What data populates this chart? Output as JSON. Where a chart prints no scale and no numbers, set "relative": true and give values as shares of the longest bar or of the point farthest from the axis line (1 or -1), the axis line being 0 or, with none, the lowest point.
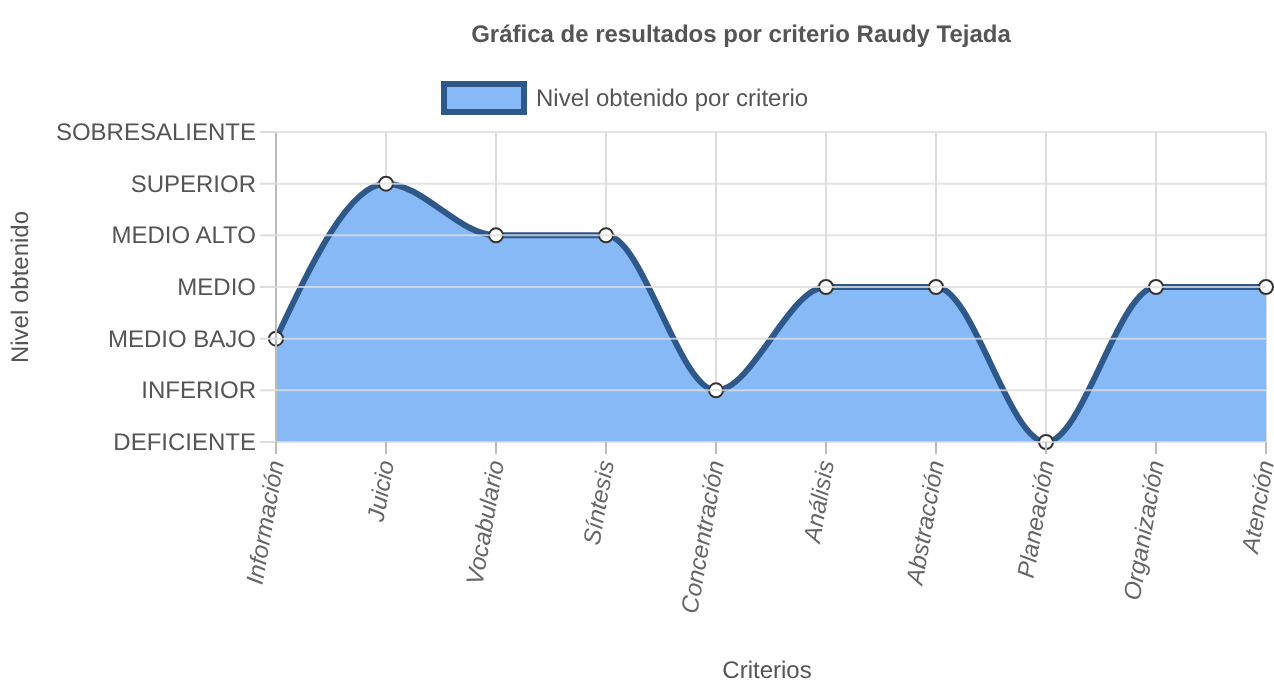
{
  "chart_data": {
    "type": "area",
    "title": "Gráfica de resultados por criterio Raudy Tejada",
    "xlabel": "Criterios",
    "annotations": [
      "Nivel obtenido"
    ],
    "categories": [
      "Información",
      "Juicio",
      "Vocabulario",
      "Síntesis",
      "Concentración",
      "Análisis",
      "Abstracción",
      "Planeación",
      "Organización",
      "Atención"
    ],
    "series": [
      {
        "name": "Nivel obtenido por criterio",
        "color": "#87b9f7",
        "values": [
          0.4,
          1,
          0.8,
          0.8,
          0.2,
          0.6,
          0.6,
          0,
          0.6,
          0.6
        ]
      }
    ],
    "relative": true,
    "ref_lines": [
      {
        "axis": "y",
        "value": 0,
        "label": "DEFICIENTE",
        "color": "#dddddd"
      },
      {
        "axis": "y",
        "value": 0.2,
        "label": "INFERIOR",
        "color": "#dddddd"
      },
      {
        "axis": "y",
        "value": 0.4,
        "label": "MEDIO BAJO",
        "color": "#dddddd"
      },
      {
        "axis": "y",
        "value": 0.6,
        "label": "MEDIO",
        "color": "#dddddd"
      },
      {
        "axis": "y",
        "value": 0.8,
        "label": "MEDIO ALTO",
        "color": "#dddddd"
      },
      {
        "axis": "y",
        "value": 1,
        "label": "SUPERIOR",
        "color": "#dddddd"
      },
      {
        "axis": "y",
        "value": 1.2,
        "label": "SOBRESALIENTE",
        "color": "#dddddd"
      }
    ],
    "grid": "x",
    "legend": "top",
    "marker": "circle",
    "line_style": "solid"
  }
}
